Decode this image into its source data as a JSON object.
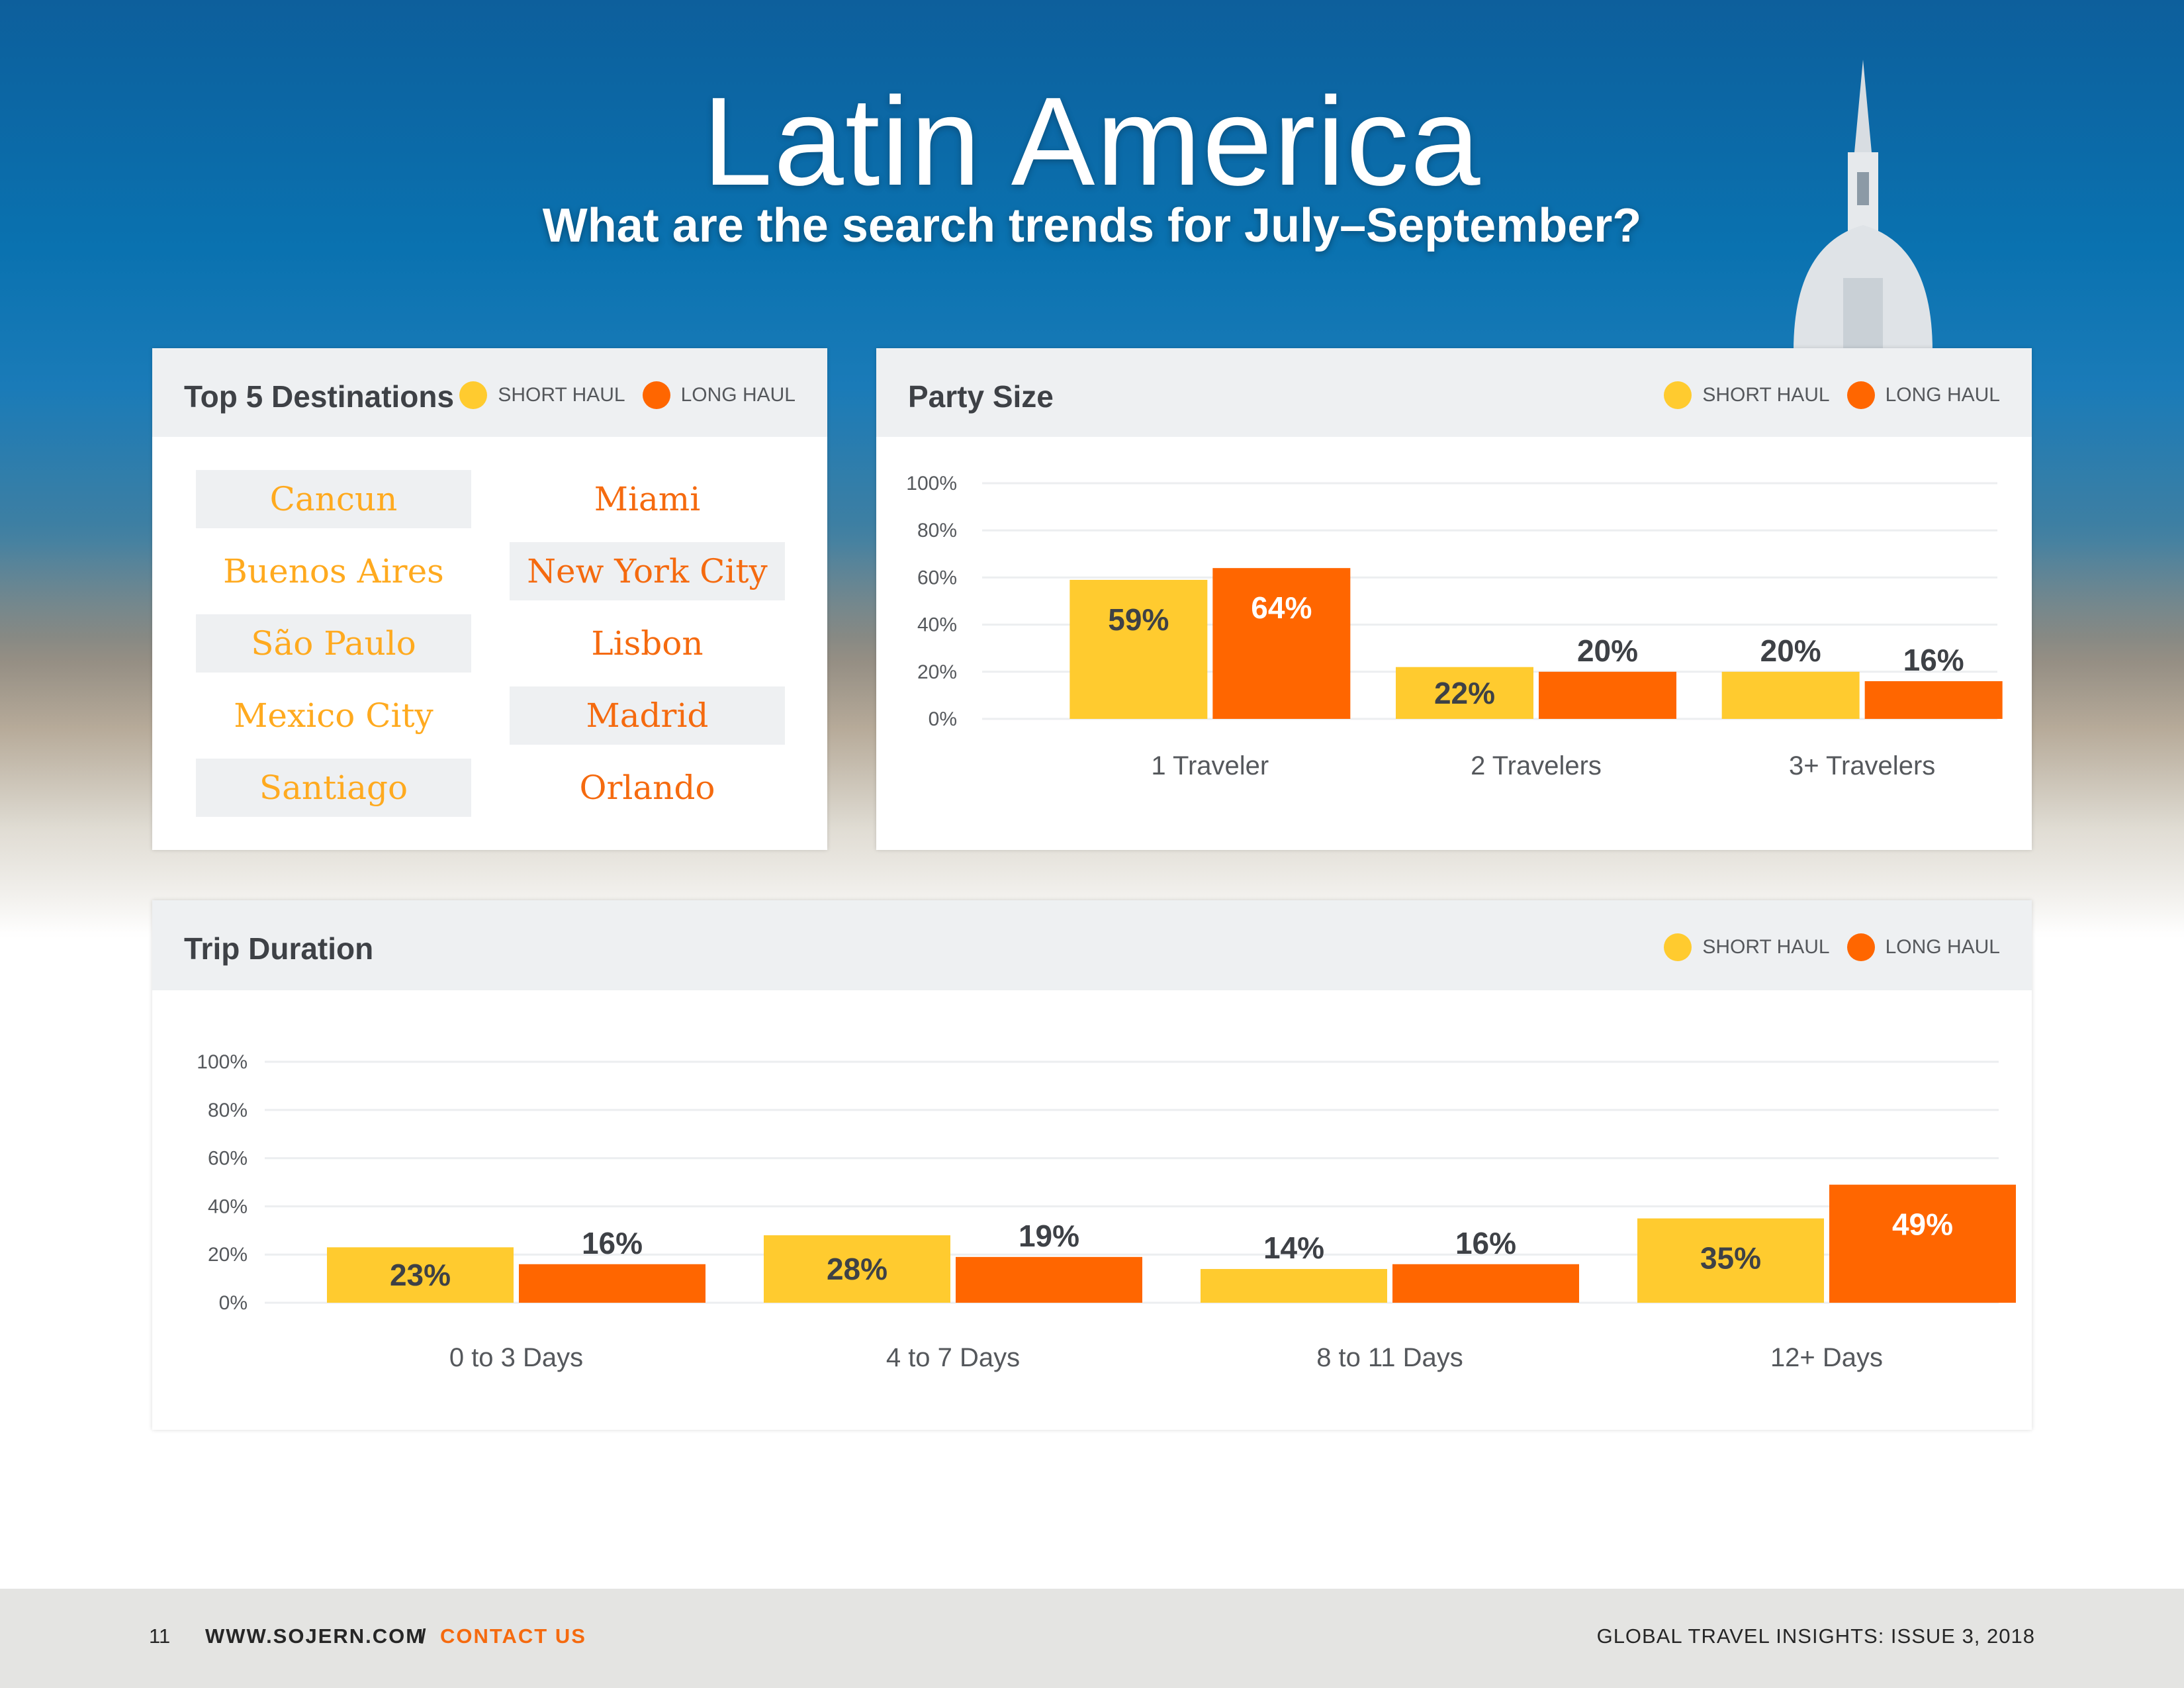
{
  "page": {
    "title": "Latin America",
    "subtitle": "What are the search trends for July–September?"
  },
  "legend": {
    "short": "SHORT HAUL",
    "long": "LONG HAUL"
  },
  "colors": {
    "short": "#ffcb2f",
    "long": "#ff6600",
    "short_text": "#ffaa1f",
    "long_text": "#f56a0f"
  },
  "destinations": {
    "title": "Top 5 Destinations",
    "short_haul": [
      "Cancun",
      "Buenos Aires",
      "São Paulo",
      "Mexico City",
      "Santiago"
    ],
    "long_haul": [
      "Miami",
      "New York City",
      "Lisbon",
      "Madrid",
      "Orlando"
    ]
  },
  "chart_data": [
    {
      "type": "bar",
      "title": "Party Size",
      "categories": [
        "1 Traveler",
        "2 Travelers",
        "3+ Travelers"
      ],
      "series": [
        {
          "name": "SHORT HAUL",
          "values": [
            59,
            22,
            20
          ]
        },
        {
          "name": "LONG HAUL",
          "values": [
            64,
            20,
            16
          ]
        }
      ],
      "ylim": [
        0,
        100
      ],
      "yticks": [
        "0%",
        "20%",
        "40%",
        "60%",
        "80%",
        "100%"
      ],
      "xlabel": "",
      "ylabel": ""
    },
    {
      "type": "bar",
      "title": "Trip Duration",
      "categories": [
        "0 to 3 Days",
        "4 to 7 Days",
        "8 to 11 Days",
        "12+ Days"
      ],
      "series": [
        {
          "name": "SHORT HAUL",
          "values": [
            23,
            28,
            14,
            35
          ]
        },
        {
          "name": "LONG HAUL",
          "values": [
            16,
            19,
            16,
            49
          ]
        }
      ],
      "ylim": [
        0,
        100
      ],
      "yticks": [
        "0%",
        "20%",
        "40%",
        "60%",
        "80%",
        "100%"
      ],
      "xlabel": "",
      "ylabel": ""
    }
  ],
  "footer": {
    "page_number": "11",
    "site": "WWW.SOJERN.COM",
    "separator": "/",
    "contact": "CONTACT US",
    "issue": "GLOBAL TRAVEL INSIGHTS: ISSUE 3, 2018"
  }
}
